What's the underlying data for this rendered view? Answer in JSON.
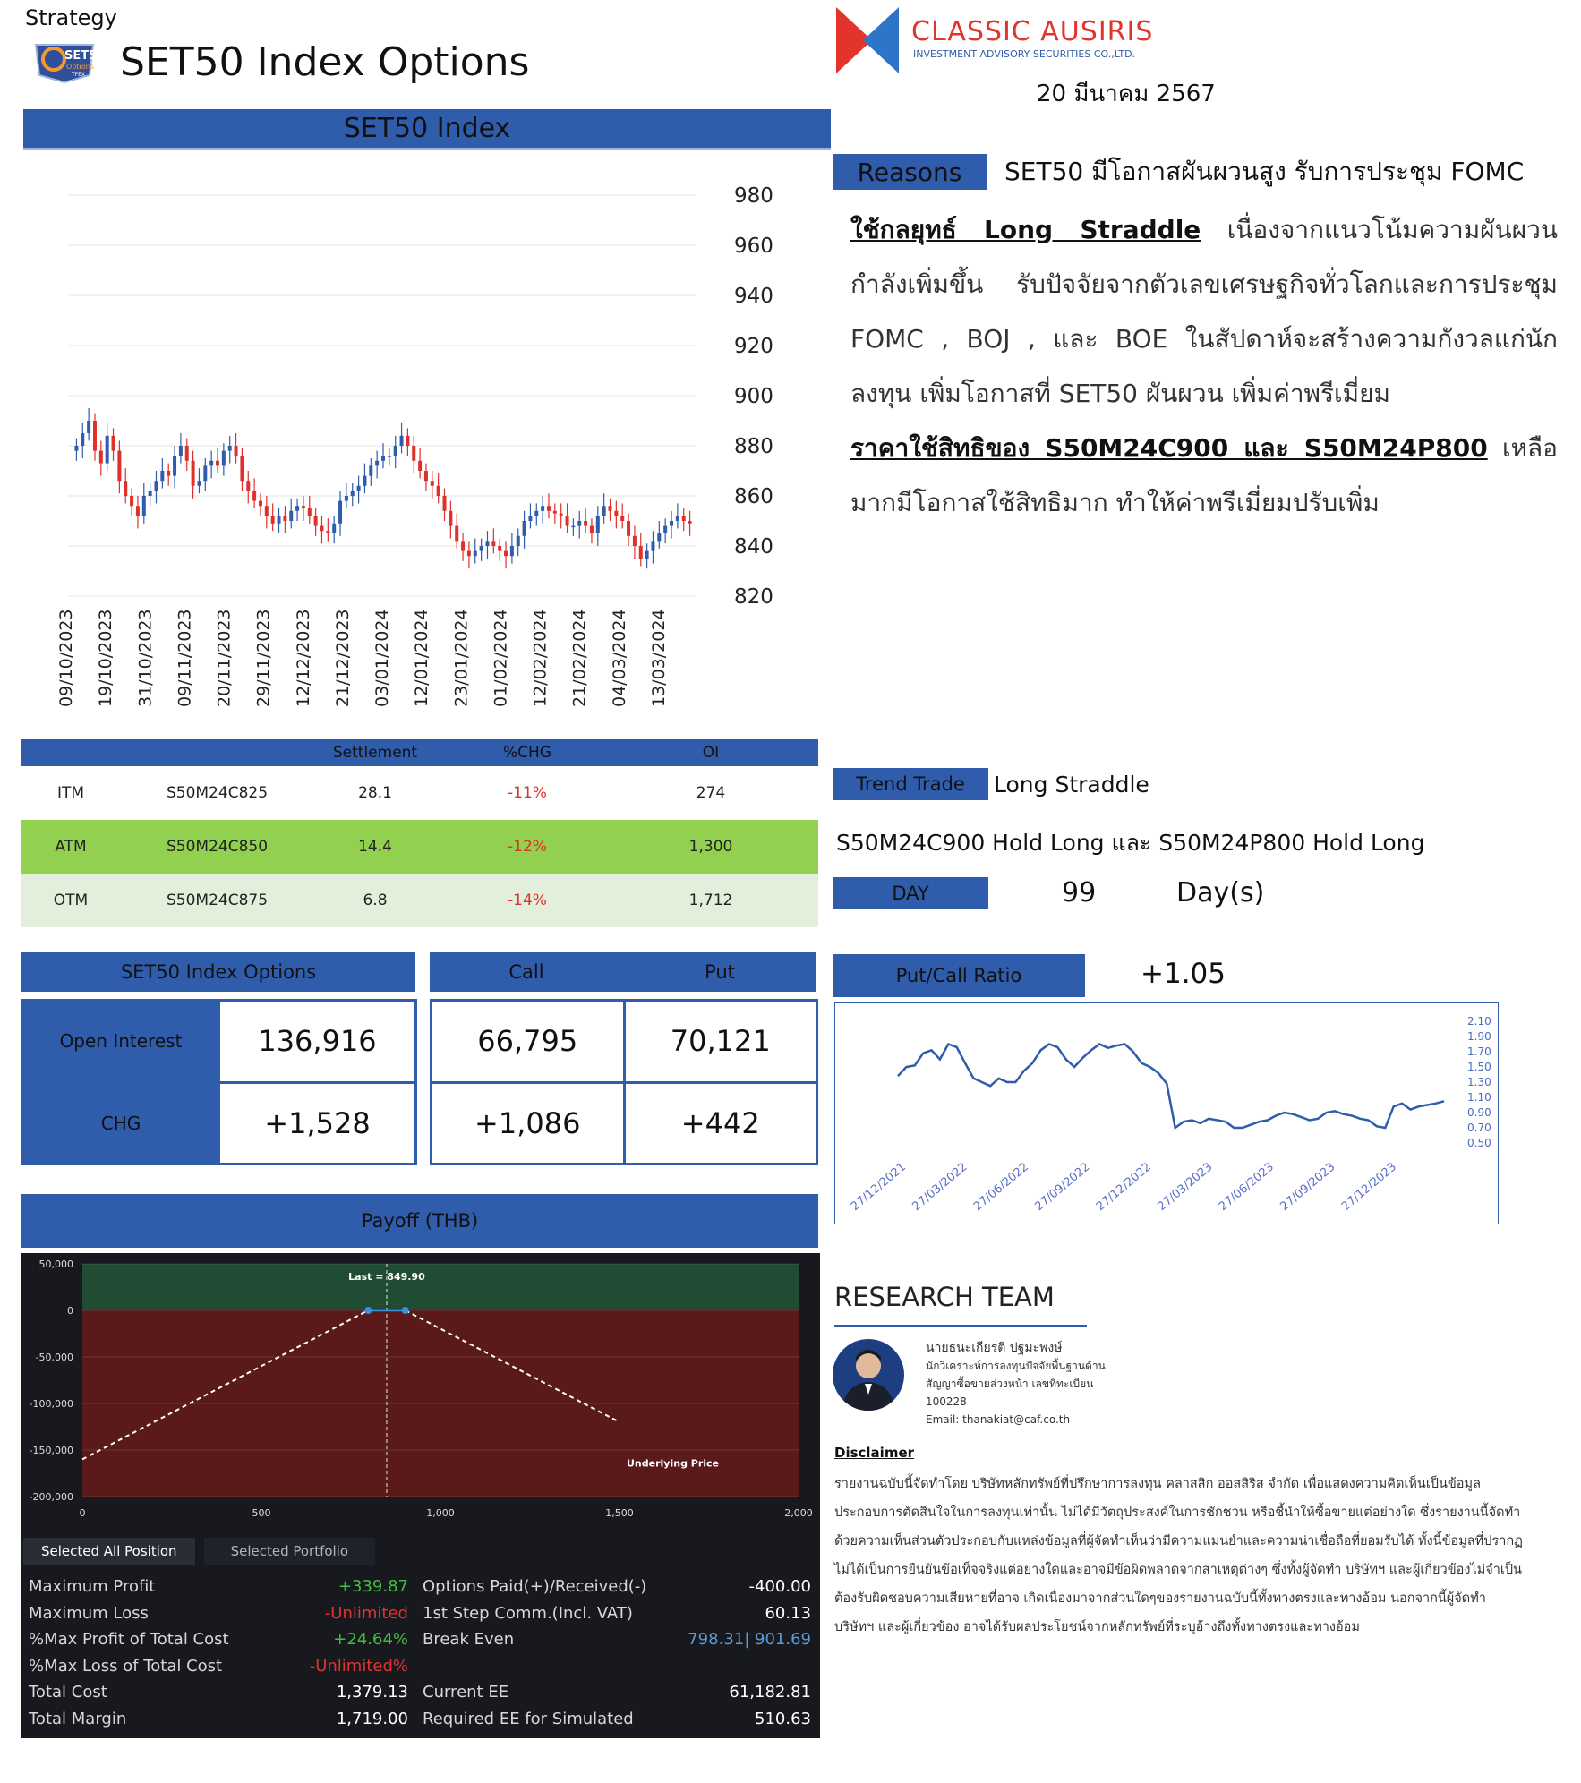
{
  "header": {
    "strategy": "Strategy",
    "title": "SET50 Index Options",
    "logo_line1": "SET50",
    "logo_line2": "Options",
    "logo_line3": "TFEX",
    "company": "CLASSIC AUSIRIS",
    "company_sub": "INVESTMENT ADVISORY SECURITIES CO.,LTD.",
    "date": "20 มีนาคม 2567"
  },
  "index_panel": {
    "title": "SET50 Index"
  },
  "chart_data": [
    {
      "type": "candlestick",
      "title": "SET50 Index",
      "ylim": [
        820,
        980
      ],
      "yticks": [
        980,
        960,
        940,
        920,
        900,
        880,
        860,
        840,
        820
      ],
      "xticks": [
        "09/10/2023",
        "19/10/2023",
        "31/10/2023",
        "09/11/2023",
        "20/11/2023",
        "29/11/2023",
        "12/12/2023",
        "21/12/2023",
        "03/01/2024",
        "12/01/2024",
        "23/01/2024",
        "01/02/2024",
        "12/02/2024",
        "21/02/2024",
        "04/03/2024",
        "13/03/2024"
      ],
      "close": [
        880,
        885,
        890,
        878,
        873,
        884,
        878,
        866,
        860,
        856,
        852,
        860,
        862,
        866,
        870,
        868,
        876,
        880,
        874,
        864,
        866,
        872,
        874,
        872,
        878,
        880,
        876,
        866,
        862,
        858,
        856,
        852,
        849,
        852,
        850,
        854,
        856,
        855,
        852,
        848,
        846,
        845,
        849,
        858,
        860,
        862,
        864,
        868,
        872,
        874,
        876,
        876,
        880,
        884,
        880,
        874,
        870,
        866,
        864,
        860,
        854,
        848,
        842,
        838,
        836,
        838,
        840,
        842,
        840,
        838,
        836,
        840,
        844,
        850,
        852,
        854,
        856,
        854,
        853,
        852,
        848,
        848,
        850,
        848,
        845,
        852,
        856,
        854,
        852,
        850,
        844,
        840,
        835,
        838,
        842,
        845,
        848,
        850,
        852,
        850,
        849
      ]
    },
    {
      "type": "line",
      "title": "Put/Call Ratio",
      "ylim": [
        0.5,
        2.1
      ],
      "yticks": [
        "2.10",
        "1.90",
        "1.70",
        "1.50",
        "1.30",
        "1.10",
        "0.90",
        "0.70",
        "0.50"
      ],
      "xticks": [
        "27/12/2021",
        "27/03/2022",
        "27/06/2022",
        "27/09/2022",
        "27/12/2022",
        "27/03/2023",
        "27/06/2023",
        "27/09/2023",
        "27/12/2023"
      ],
      "values": [
        1.38,
        1.5,
        1.52,
        1.68,
        1.72,
        1.6,
        1.8,
        1.76,
        1.55,
        1.35,
        1.3,
        1.25,
        1.35,
        1.3,
        1.3,
        1.45,
        1.55,
        1.72,
        1.8,
        1.76,
        1.6,
        1.5,
        1.62,
        1.72,
        1.8,
        1.75,
        1.78,
        1.8,
        1.7,
        1.55,
        1.5,
        1.42,
        1.28,
        0.7,
        0.78,
        0.8,
        0.76,
        0.82,
        0.8,
        0.78,
        0.7,
        0.7,
        0.74,
        0.78,
        0.8,
        0.86,
        0.9,
        0.88,
        0.84,
        0.8,
        0.82,
        0.9,
        0.92,
        0.88,
        0.86,
        0.82,
        0.8,
        0.72,
        0.7,
        0.98,
        1.02,
        0.94,
        0.98,
        1.0,
        1.02,
        1.05
      ]
    },
    {
      "type": "line",
      "title": "Payoff (THB)",
      "ylim": [
        -200000,
        50000
      ],
      "xlim": [
        0,
        2000
      ],
      "yticks": [
        "50,000",
        "0",
        "-50,000",
        "-100,000",
        "-150,000",
        "-200,000"
      ],
      "xticks": [
        "0",
        "500",
        "1,000",
        "1,500",
        "2,000"
      ],
      "x": [
        0,
        798.31,
        901.69,
        1500
      ],
      "y": [
        -160000,
        0,
        0,
        -120000
      ],
      "last_label": "Last = 849.90",
      "last_x": 849.9,
      "xlabel": "Underlying Price"
    }
  ],
  "reasons": {
    "tag": "Reasons",
    "headline": "SET50 มีโอกาสผันผวนสูง รับการประชุม FOMC",
    "p1_lead": "ใช้กลยุทธ์ Long Straddle",
    "p1_rest": " เนื่องจากแนวโน้มความผันผวนกำลังเพิ่มขึ้น รับปัจจัยจากตัวเลขเศรษฐกิจทั่วโลกและการประชุม FOMC , BOJ , และ BOE ในสัปดาห์จะสร้างความกังวลแก่นักลงทุน เพิ่มโอกาสที่ SET50 ผันผวน เพิ่มค่าพรีเมี่ยม",
    "p2_lead": "ราคาใช้สิทธิของ S50M24C900 และ S50M24P800",
    "p2_rest": " เหลือมากมีโอกาสใช้สิทธิมาก ทำให้ค่าพรีเมี่ยมปรับเพิ่ม"
  },
  "oi_table": {
    "headers": [
      "",
      "",
      "Settlement",
      "%CHG",
      "OI"
    ],
    "rows": [
      {
        "tag": "ITM",
        "series": "S50M24C825",
        "settle": "28.1",
        "chg": "-11%",
        "oi": "274"
      },
      {
        "tag": "ATM",
        "series": "S50M24C850",
        "settle": "14.4",
        "chg": "-12%",
        "oi": "1,300"
      },
      {
        "tag": "OTM",
        "series": "S50M24C875",
        "settle": "6.8",
        "chg": "-14%",
        "oi": "1,712"
      }
    ]
  },
  "trend": {
    "tag": "Trend Trade",
    "value": "Long Straddle",
    "position": "S50M24C900 Hold Long และ S50M24P800 Hold Long",
    "day_tag": "DAY",
    "day_value": "99",
    "day_unit": "Day(s)"
  },
  "oi_summary": {
    "header_left": "SET50 Index Options",
    "header_call": "Call",
    "header_put": "Put",
    "oi_label": "Open Interest",
    "chg_label": "CHG",
    "oi_total": "136,916",
    "chg_total": "+1,528",
    "oi_call": "66,795",
    "oi_put": "70,121",
    "chg_call": "+1,086",
    "chg_put": "+442"
  },
  "pcr": {
    "label": "Put/Call Ratio",
    "value": "+1.05"
  },
  "payoff": {
    "title": "Payoff (THB)",
    "tab_active": "Selected All Position",
    "tab_inactive": "Selected Portfolio",
    "left": [
      {
        "label": "Maximum Profit",
        "value": "+339.87",
        "color": "#3fbf3f"
      },
      {
        "label": "Maximum Loss",
        "value": "-Unlimited",
        "color": "#e5322d"
      },
      {
        "label": "%Max Profit of Total Cost",
        "value": "+24.64%",
        "color": "#3fbf3f"
      },
      {
        "label": "%Max Loss of Total Cost",
        "value": "-Unlimited%",
        "color": "#e5322d"
      },
      {
        "label": "Total Cost",
        "value": "1,379.13",
        "color": "#ffffff"
      },
      {
        "label": "Total Margin",
        "value": "1,719.00",
        "color": "#ffffff"
      }
    ],
    "right": [
      {
        "label": "Options Paid(+)/Received(-)",
        "value": "-400.00",
        "color": "#ffffff"
      },
      {
        "label": "1st Step Comm.(Incl. VAT)",
        "value": "60.13",
        "color": "#ffffff"
      },
      {
        "label": "Break Even",
        "value": "798.31| 901.69",
        "color": "#5b9bd5"
      },
      {
        "label": "",
        "value": "",
        "color": "#ffffff"
      },
      {
        "label": "Current EE",
        "value": "61,182.81",
        "color": "#ffffff"
      },
      {
        "label": "Required EE for Simulated",
        "value": "510.63",
        "color": "#ffffff"
      }
    ]
  },
  "research": {
    "title": "RESEARCH TEAM",
    "name": "นายธนะเกียรติ ปฐมะพงษ์",
    "role1": "นักวิเคราะห์การลงทุนปัจจัยพื้นฐานด้าน",
    "role2": "สัญญาซื้อขายล่วงหน้า เลขที่ทะเบียน",
    "reg": "100228",
    "email": "Email: thanakiat@caf.co.th"
  },
  "disclaimer": {
    "title": "Disclaimer",
    "text": "รายงานฉบับนี้จัดทำโดย บริษัทหลักทรัพย์ที่ปรึกษาการลงทุน คลาสสิก ออสสิริส จำกัด เพื่อแสดงความคิดเห็นเป็นข้อมูลประกอบการตัดสินใจในการลงทุนเท่านั้น ไม่ได้มีวัตถุประสงค์ในการชักชวน หรือชี้นำให้ซื้อขายแต่อย่างใด ซึ่งรายงานนี้จัดทำด้วยความเห็นส่วนตัวประกอบกับแหล่งข้อมูลที่ผู้จัดทำเห็นว่ามีความแม่นยำและความน่าเชื่อถือที่ยอมรับได้ ทั้งนี้ข้อมูลที่ปรากฏไม่ได้เป็นการยืนยันข้อเท็จจริงแต่อย่างใดและอาจมีข้อผิดพลาดจากสาเหตุต่างๆ ซึ่งทั้งผู้จัดทำ บริษัทฯ และผู้เกี่ยวข้องไม่จำเป็นต้องรับผิดชอบความเสียหายที่อาจ เกิดเนื่องมาจากส่วนใดๆของรายงานฉบับนี้ทั้งทางตรงและทางอ้อม นอกจากนี้ผู้จัดทำ บริษัทฯ และผู้เกี่ยวข้อง อาจได้รับผลประโยชน์จากหลักทรัพย์ที่ระบุอ้างถึงทั้งทางตรงและทางอ้อม"
  },
  "colors": {
    "brand_blue": "#2f5cab",
    "up": "#2f5cab",
    "down": "#e0302b",
    "atm_row": "#92d050",
    "otm_row": "#e2efda"
  }
}
